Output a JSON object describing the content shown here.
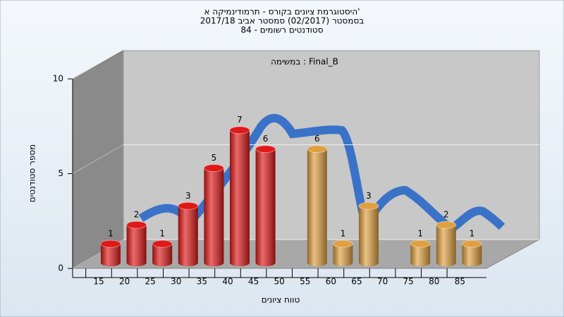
{
  "chart_data": {
    "type": "bar",
    "title": "היסטוגרמת ציונים בקורס - תרמודינמיקה א'",
    "subtitle": "בסמסטר  (02/2017)  סמסטר אביב 2017/18",
    "subtitle2": "סטודנטים רשומים - 84",
    "annotation": "במשימה : Final_B",
    "x_label": "טווח ציונים",
    "y_label": "מספר סטודנטים",
    "categories": [
      "15",
      "20",
      "25",
      "30",
      "35",
      "40",
      "45",
      "50",
      "55",
      "60",
      "65",
      "70",
      "75",
      "80",
      "85"
    ],
    "values": [
      1,
      2,
      1,
      3,
      5,
      7,
      6,
      0,
      6,
      1,
      3,
      0,
      1,
      2,
      1
    ],
    "colors": [
      "#e01818",
      "#e01818",
      "#e01818",
      "#e01818",
      "#e01818",
      "#e01818",
      "#e01818",
      "#e01818",
      "#e0a040",
      "#e0a040",
      "#e0a040",
      "#e0a040",
      "#e0a040",
      "#e0a040",
      "#e0a040"
    ],
    "ylim": [
      0,
      10
    ],
    "yticks": [
      0,
      5,
      10
    ],
    "grid": true
  }
}
